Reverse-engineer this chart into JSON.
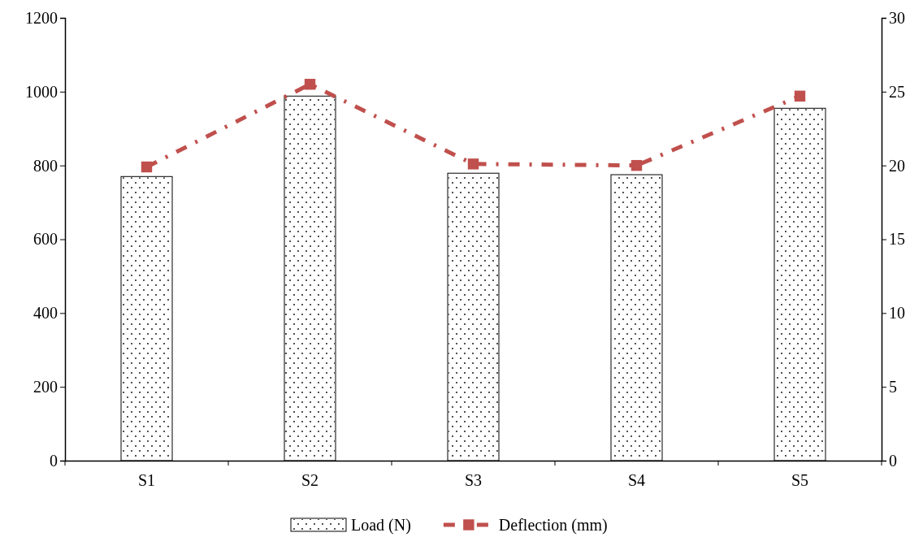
{
  "chart_data": {
    "type": "bar",
    "categories": [
      "S1",
      "S2",
      "S3",
      "S4",
      "S5"
    ],
    "series": [
      {
        "name": "Load (N)",
        "color": "#ffffff",
        "values": [
          770,
          988,
          779,
          775,
          955
        ]
      },
      {
        "name": "Deflection (mm)",
        "type": "line",
        "axis": "y2",
        "color": "#c0504d",
        "marker": "square",
        "line_style": "dashed",
        "values": [
          19.9,
          25.5,
          20.1,
          20.0,
          24.7
        ]
      }
    ],
    "ylim": [
      0,
      1200
    ],
    "yticks": [
      0,
      200,
      400,
      600,
      800,
      1000,
      1200
    ],
    "y2lim": [
      0,
      30
    ],
    "y2ticks": [
      0,
      5,
      10,
      15,
      20,
      25,
      30
    ],
    "grid": false,
    "legend": "bottom"
  }
}
